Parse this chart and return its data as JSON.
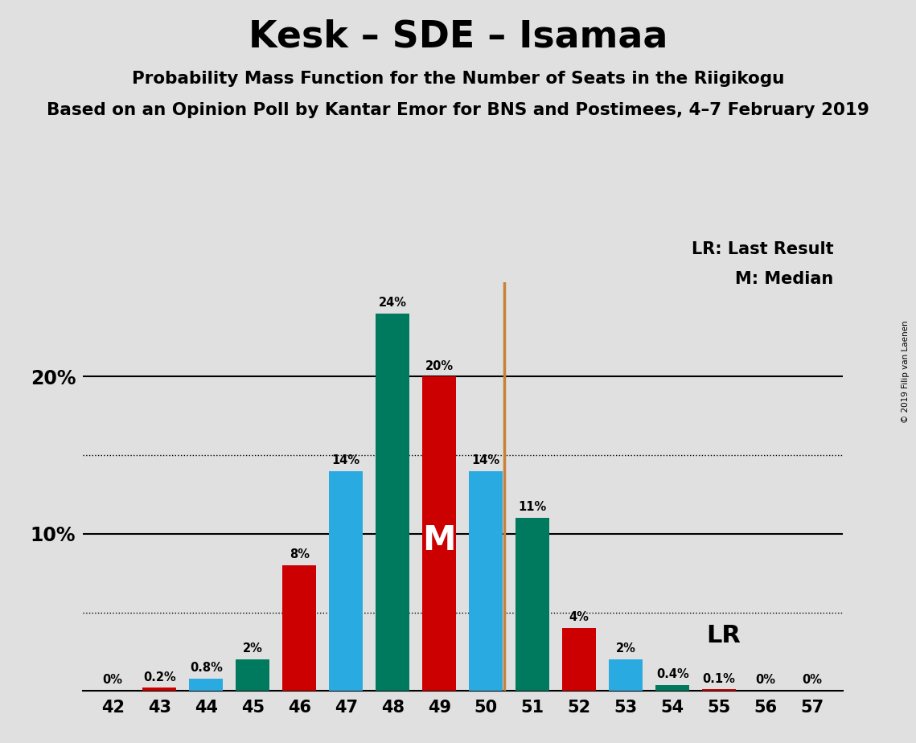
{
  "title": "Kesk – SDE – Isamaa",
  "subtitle1": "Probability Mass Function for the Number of Seats in the Riigikogu",
  "subtitle2": "Based on an Opinion Poll by Kantar Emor for BNS and Postimees, 4–7 February 2019",
  "copyright": "© 2019 Filip van Laenen",
  "seats": [
    42,
    43,
    44,
    45,
    46,
    47,
    48,
    49,
    50,
    51,
    52,
    53,
    54,
    55,
    56,
    57
  ],
  "bar_color_keys": [
    "red",
    "red",
    "blue",
    "green",
    "red",
    "blue",
    "green",
    "red",
    "blue",
    "green",
    "red",
    "blue",
    "green",
    "red",
    "red",
    "red"
  ],
  "bar_values": [
    0.0,
    0.2,
    0.8,
    2.0,
    8.0,
    14.0,
    24.0,
    20.0,
    14.0,
    11.0,
    4.0,
    2.0,
    0.4,
    0.1,
    0.0,
    0.0
  ],
  "bar_labels": [
    "0%",
    "0.2%",
    "0.8%",
    "2%",
    "8%",
    "14%",
    "24%",
    "20%",
    "14%",
    "11%",
    "4%",
    "2%",
    "0.4%",
    "0.1%",
    "0%",
    "0%"
  ],
  "red_color": "#CC0000",
  "blue_color": "#29ABE2",
  "green_color": "#007A5E",
  "lr_line_seat_idx": 8,
  "lr_line_color": "#C8813A",
  "median_seat_idx": 7,
  "median_label": "M",
  "median_label_color": "#FFFFFF",
  "background_color": "#E0E0E0",
  "ylim_max": 26,
  "solid_gridlines": [
    10,
    20
  ],
  "dotted_gridlines": [
    5,
    15
  ],
  "legend_lr": "LR: Last Result",
  "legend_m": "M: Median",
  "legend_lr_short": "LR"
}
